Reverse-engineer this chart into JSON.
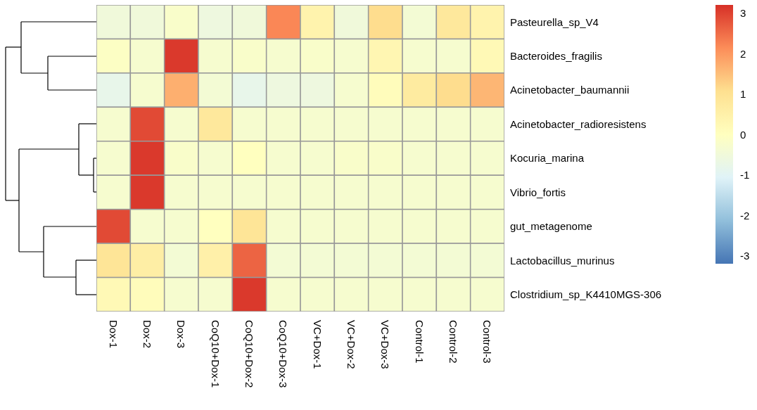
{
  "chart_data": {
    "type": "heatmap",
    "categories": [
      "Dox-1",
      "Dox-2",
      "Dox-3",
      "CoQ10+Dox-1",
      "CoQ10+Dox-2",
      "CoQ10+Dox-3",
      "VC+Dox-1",
      "VC+Dox-2",
      "VC+Dox-3",
      "Control-1",
      "Control-2",
      "Control-3"
    ],
    "y_categories": [
      "Pasteurella_sp_V4",
      "Bacteroides_fragilis",
      "Acinetobacter_baumannii",
      "Acinetobacter_radioresistens",
      "Kocuria_marina",
      "Vibrio_fortis",
      "gut_metagenome",
      "Lactobacillus_murinus",
      "Clostridium_sp_K4410MGS-306"
    ],
    "cells": [
      [
        -0.5,
        -0.5,
        -0.2,
        -0.6,
        -0.5,
        2.2,
        0.4,
        -0.5,
        1.1,
        -0.4,
        0.8,
        0.4
      ],
      [
        -0.1,
        -0.3,
        3.1,
        -0.3,
        -0.2,
        -0.3,
        -0.2,
        -0.3,
        0.3,
        -0.3,
        -0.3,
        0.2
      ],
      [
        -0.8,
        -0.3,
        1.7,
        -0.4,
        -0.8,
        -0.6,
        -0.6,
        -0.3,
        0.1,
        0.7,
        1.1,
        1.6
      ],
      [
        -0.3,
        2.9,
        -0.3,
        0.8,
        -0.3,
        -0.3,
        -0.3,
        -0.3,
        -0.3,
        -0.3,
        -0.3,
        -0.3
      ],
      [
        -0.3,
        3.1,
        -0.2,
        -0.3,
        0,
        -0.3,
        -0.3,
        -0.2,
        -0.2,
        -0.3,
        -0.3,
        -0.3
      ],
      [
        -0.3,
        3.1,
        -0.3,
        -0.3,
        -0.3,
        -0.3,
        -0.3,
        -0.3,
        -0.3,
        -0.3,
        -0.3,
        -0.3
      ],
      [
        2.9,
        -0.3,
        -0.3,
        0,
        0.9,
        -0.3,
        -0.3,
        -0.3,
        -0.3,
        -0.3,
        -0.3,
        -0.3
      ],
      [
        0.9,
        0.6,
        -0.4,
        0.5,
        2.6,
        -0.4,
        -0.4,
        -0.4,
        -0.4,
        -0.4,
        -0.4,
        -0.4
      ],
      [
        0.2,
        0.1,
        -0.3,
        -0.3,
        3.1,
        -0.3,
        -0.3,
        -0.3,
        -0.3,
        -0.3,
        -0.3,
        -0.3
      ]
    ],
    "clim": [
      -3.2,
      3.2
    ],
    "cticks": [
      -3,
      -2,
      -1,
      0,
      1,
      2,
      3
    ]
  }
}
